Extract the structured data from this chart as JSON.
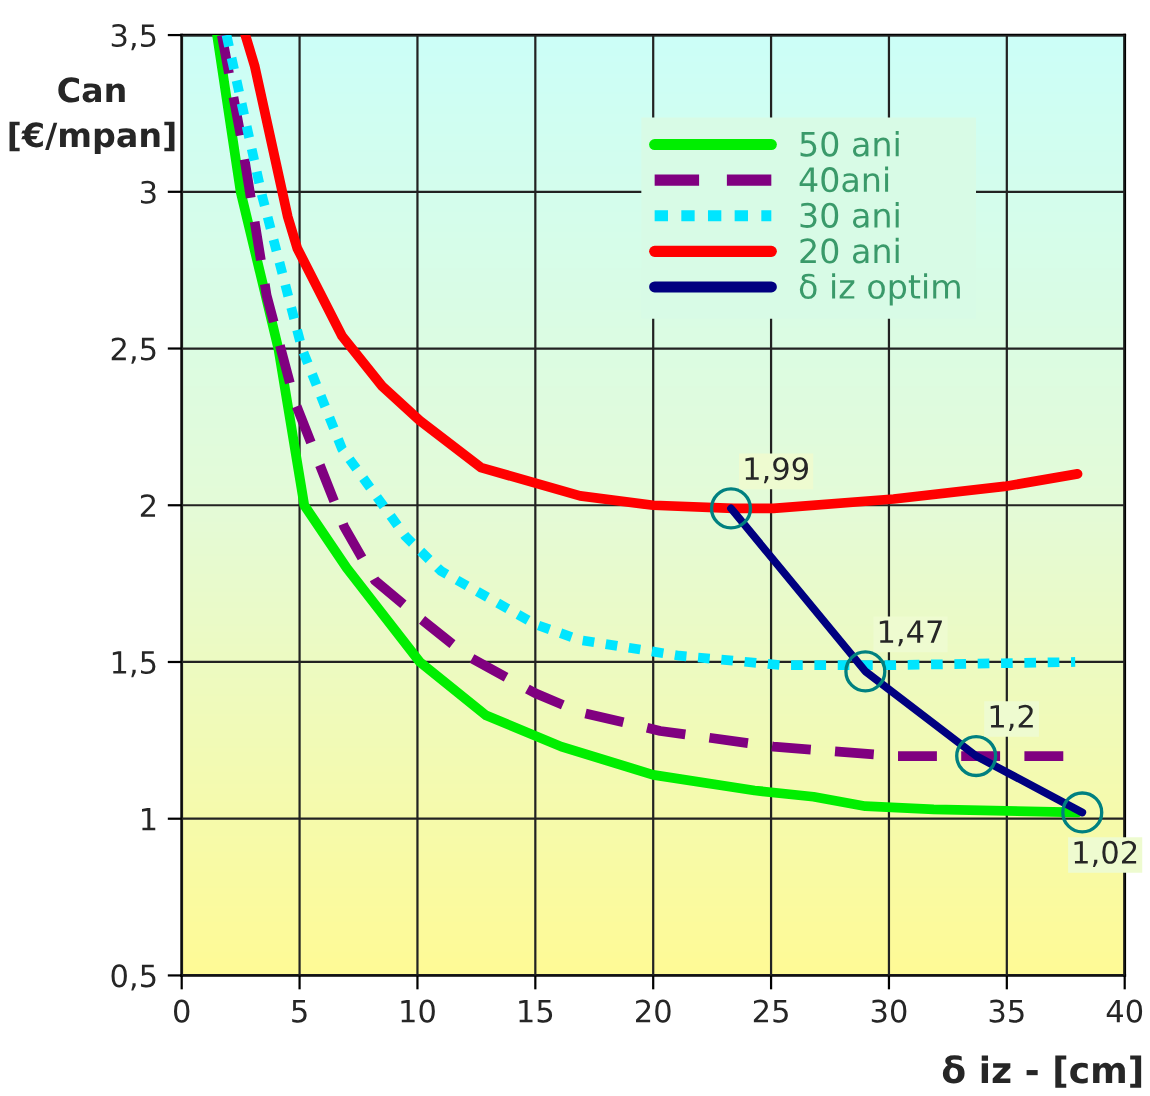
{
  "chart_data": {
    "type": "line",
    "xlabel": "δ iz - [cm]",
    "ylabel": "Can\n[€/mpan]",
    "xlim": [
      0,
      40
    ],
    "xticks": [
      0,
      5,
      10,
      15,
      20,
      25,
      30,
      35,
      40
    ],
    "ylim": [
      0.5,
      3.5
    ],
    "yticks": [
      {
        "value": 0.5,
        "label": "0,5"
      },
      1,
      {
        "value": 1.5,
        "label": "1,5"
      },
      2,
      {
        "value": 2.5,
        "label": "2,5"
      },
      3,
      {
        "value": 3.5,
        "label": "3,5"
      }
    ],
    "grid": true,
    "legend": "top right",
    "series": [
      {
        "name": "50 ani",
        "color": "#00ee00",
        "line_style": "solid",
        "x": [
          1.5,
          2.5,
          4.1,
          5.2,
          7.0,
          10.1,
          12.9,
          16.1,
          20,
          24.3,
          26.8,
          29,
          31.9,
          38
        ],
        "values": [
          3.5,
          3.0,
          2.5,
          2.0,
          1.8,
          1.5,
          1.33,
          1.23,
          1.14,
          1.09,
          1.07,
          1.04,
          1.03,
          1.02
        ]
      },
      {
        "name": "40ani",
        "color": "#800080",
        "line_style": "dashed",
        "x": [
          1.7,
          2.5,
          3.6,
          4.8,
          6.9,
          8.2,
          10.1,
          12.1,
          15,
          16.9,
          20.3,
          25.1,
          30.2,
          37.6
        ],
        "values": [
          3.5,
          3.18,
          2.67,
          2.33,
          1.93,
          1.76,
          1.64,
          1.52,
          1.4,
          1.34,
          1.28,
          1.23,
          1.2,
          1.2
        ]
      },
      {
        "name": "30 ani",
        "color": "#00e5ff",
        "line_style": "dotted",
        "x": [
          1.9,
          3.4,
          5.1,
          6.8,
          9.5,
          11,
          15,
          16.9,
          21.1,
          25.4,
          30.2,
          37.9
        ],
        "values": [
          3.5,
          2.99,
          2.5,
          2.18,
          1.9,
          1.79,
          1.62,
          1.57,
          1.52,
          1.49,
          1.49,
          1.5
        ]
      },
      {
        "name": "20 ani",
        "color": "#ff0000",
        "line_style": "solid",
        "x": [
          2.7,
          3.1,
          4.5,
          4.9,
          6.8,
          8.5,
          10.1,
          12.7,
          16.9,
          20,
          23.4,
          25.1,
          30.2,
          34.9,
          38
        ],
        "values": [
          3.5,
          3.4,
          2.92,
          2.82,
          2.54,
          2.38,
          2.27,
          2.12,
          2.03,
          2.0,
          1.99,
          1.99,
          2.02,
          2.06,
          2.1
        ]
      },
      {
        "name": "δ iz optim",
        "color": "#000080",
        "line_style": "solid",
        "marker": "circle",
        "x": [
          23.3,
          29.0,
          33.7,
          38.2
        ],
        "values": [
          1.99,
          1.47,
          1.2,
          1.02
        ],
        "value_labels": [
          "1,99",
          "1,47",
          "1,2",
          "1,02"
        ]
      }
    ]
  }
}
